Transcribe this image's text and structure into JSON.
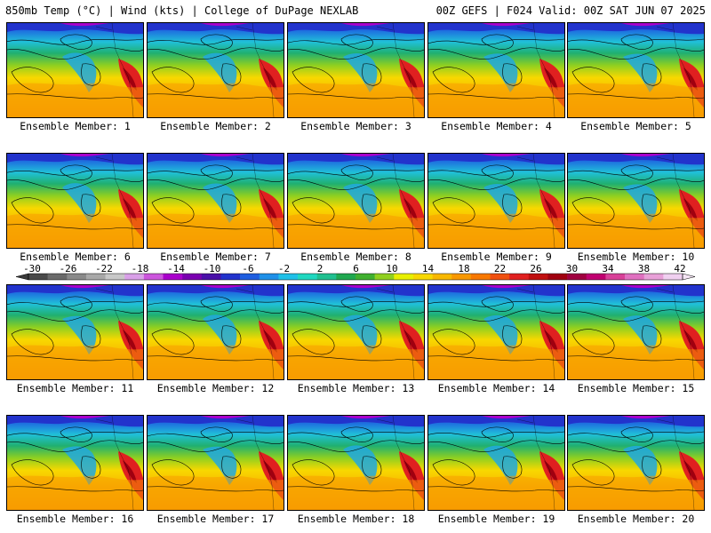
{
  "header": {
    "left": "850mb Temp (°C) | Wind (kts) | College of DuPage NEXLAB",
    "right": "00Z GEFS | F024 Valid: 00Z SAT JUN 07 2025"
  },
  "panels": [
    "Ensemble Member: 1",
    "Ensemble Member: 2",
    "Ensemble Member: 3",
    "Ensemble Member: 4",
    "Ensemble Member: 5",
    "Ensemble Member: 6",
    "Ensemble Member: 7",
    "Ensemble Member: 8",
    "Ensemble Member: 9",
    "Ensemble Member: 10",
    "Ensemble Member: 11",
    "Ensemble Member: 12",
    "Ensemble Member: 13",
    "Ensemble Member: 14",
    "Ensemble Member: 15",
    "Ensemble Member: 16",
    "Ensemble Member: 17",
    "Ensemble Member: 18",
    "Ensemble Member: 19",
    "Ensemble Member: 20"
  ],
  "colorbar": {
    "tick_labels": [
      "-30",
      "-26",
      "-22",
      "-18",
      "-14",
      "-10",
      "-6",
      "-2",
      "2",
      "6",
      "10",
      "14",
      "18",
      "22",
      "26",
      "30",
      "34",
      "38",
      "42"
    ],
    "colors": [
      "#4a4a4a",
      "#6a6a6a",
      "#8a8a8a",
      "#a8a8a8",
      "#c8c8c8",
      "#d9a0e8",
      "#cc55dd",
      "#aa00cc",
      "#7a00b0",
      "#4a10a8",
      "#2233cc",
      "#1e5ee0",
      "#1f90e8",
      "#20c0e8",
      "#20d8c0",
      "#20c090",
      "#20a850",
      "#40b030",
      "#90d020",
      "#e8f000",
      "#f8d800",
      "#f8b800",
      "#f89800",
      "#f87800",
      "#f05010",
      "#e02020",
      "#c01010",
      "#a00010",
      "#a00040",
      "#c00070",
      "#d84098",
      "#e070c0",
      "#e8a0d8",
      "#f0d0f0"
    ]
  }
}
